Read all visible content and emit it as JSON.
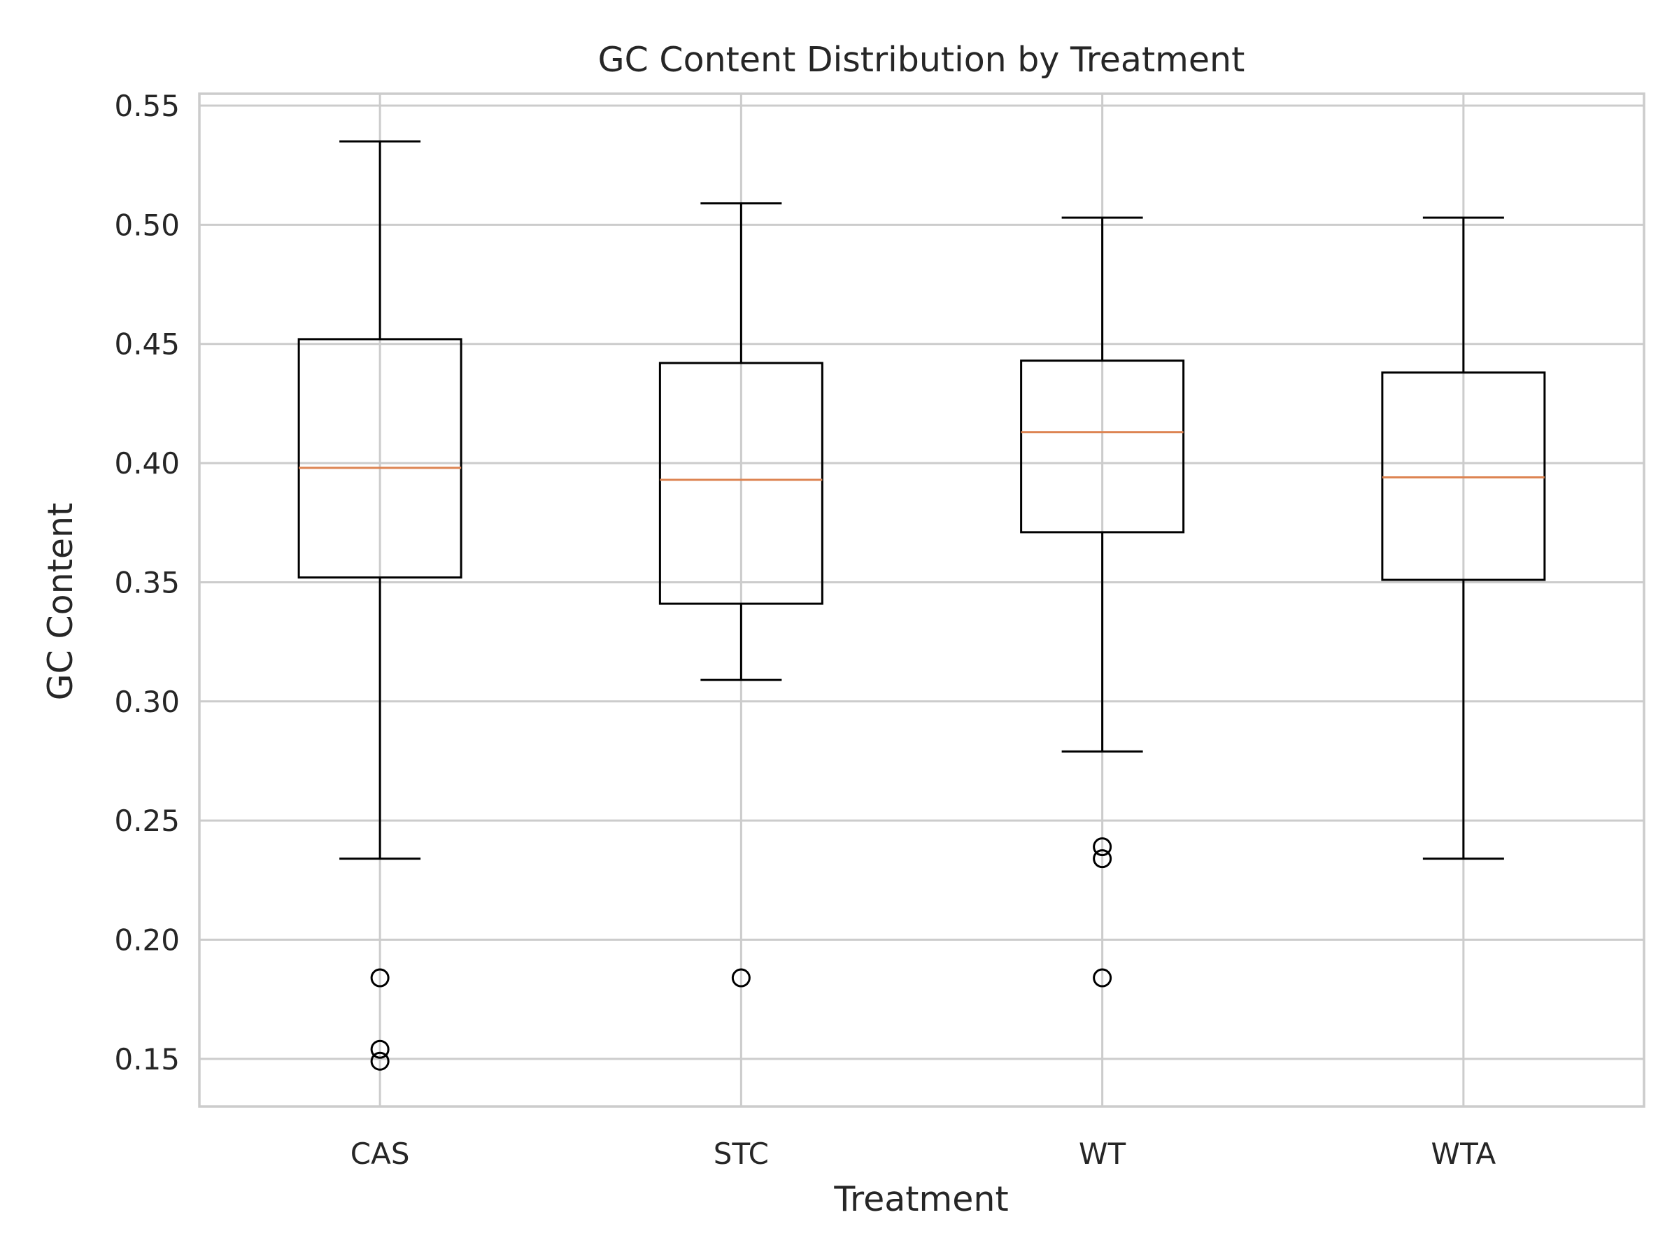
{
  "chart_data": {
    "type": "box",
    "title": "GC Content Distribution by Treatment",
    "xlabel": "Treatment",
    "ylabel": "GC Content",
    "ylim": [
      0.13,
      0.555
    ],
    "yticks": [
      "0.15",
      "0.20",
      "0.25",
      "0.30",
      "0.35",
      "0.40",
      "0.45",
      "0.50",
      "0.55"
    ],
    "grid": true,
    "categories": [
      "CAS",
      "STC",
      "WT",
      "WTA"
    ],
    "boxes": [
      {
        "category": "CAS",
        "whisker_low": 0.234,
        "q1": 0.352,
        "median": 0.398,
        "q3": 0.452,
        "whisker_high": 0.535,
        "fliers": [
          0.184,
          0.154,
          0.149
        ]
      },
      {
        "category": "STC",
        "whisker_low": 0.309,
        "q1": 0.341,
        "median": 0.393,
        "q3": 0.442,
        "whisker_high": 0.509,
        "fliers": [
          0.184
        ]
      },
      {
        "category": "WT",
        "whisker_low": 0.279,
        "q1": 0.371,
        "median": 0.413,
        "q3": 0.443,
        "whisker_high": 0.503,
        "fliers": [
          0.239,
          0.234,
          0.184
        ]
      },
      {
        "category": "WTA",
        "whisker_low": 0.234,
        "q1": 0.351,
        "median": 0.394,
        "q3": 0.438,
        "whisker_high": 0.503,
        "fliers": []
      }
    ],
    "colors": {
      "median": "#dd8452",
      "box": "#000000",
      "grid": "#cccccc"
    }
  }
}
